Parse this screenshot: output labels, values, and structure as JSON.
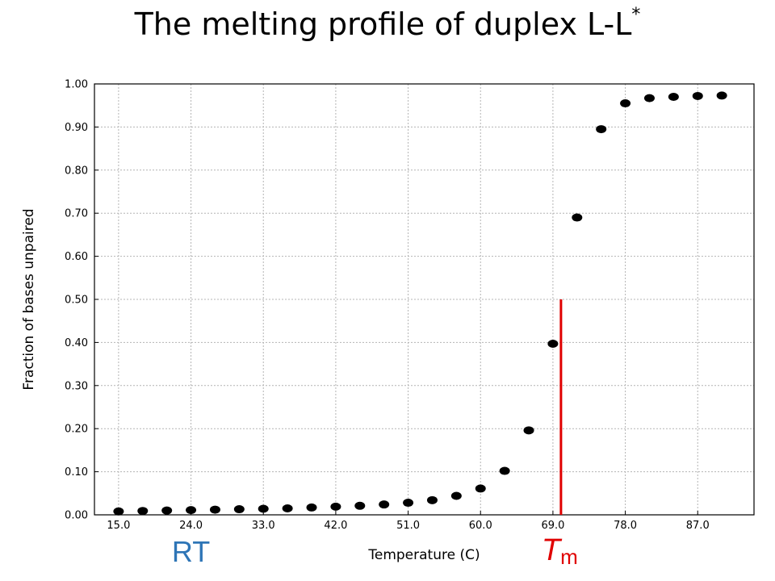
{
  "title": {
    "text": "The melting profile of duplex L-L",
    "superscript": "*"
  },
  "chart_data": {
    "type": "scatter",
    "xlabel": "Temperature (C)",
    "ylabel": "Fraction of bases unpaired",
    "xlim": [
      12,
      94
    ],
    "ylim": [
      0,
      1.0
    ],
    "grid": true,
    "x_ticks": [
      "15.0",
      "24.0",
      "33.0",
      "42.0",
      "51.0",
      "60.0",
      "69.0",
      "78.0",
      "87.0"
    ],
    "y_ticks": [
      "0.00",
      "0.10",
      "0.20",
      "0.30",
      "0.40",
      "0.50",
      "0.60",
      "0.70",
      "0.80",
      "0.90",
      "1.00"
    ],
    "series": [
      {
        "x": [
          15,
          18,
          21,
          24,
          27,
          30,
          33,
          36,
          39,
          42,
          45,
          48,
          51,
          54,
          57,
          60,
          63,
          66,
          69,
          72,
          75,
          78,
          81,
          84,
          87,
          90
        ],
        "y": [
          0.008,
          0.009,
          0.01,
          0.011,
          0.012,
          0.013,
          0.014,
          0.015,
          0.017,
          0.019,
          0.021,
          0.024,
          0.028,
          0.034,
          0.044,
          0.061,
          0.102,
          0.196,
          0.397,
          0.69,
          0.895,
          0.955,
          0.967,
          0.97,
          0.972,
          0.973
        ],
        "color": "#000000"
      }
    ],
    "annotations": {
      "rt": {
        "text": "RT",
        "x": 24,
        "color": "#2e75b6"
      },
      "tm": {
        "text": "T",
        "subscript": "m",
        "x": 70,
        "y": 0.5,
        "color": "#e00000"
      }
    }
  }
}
